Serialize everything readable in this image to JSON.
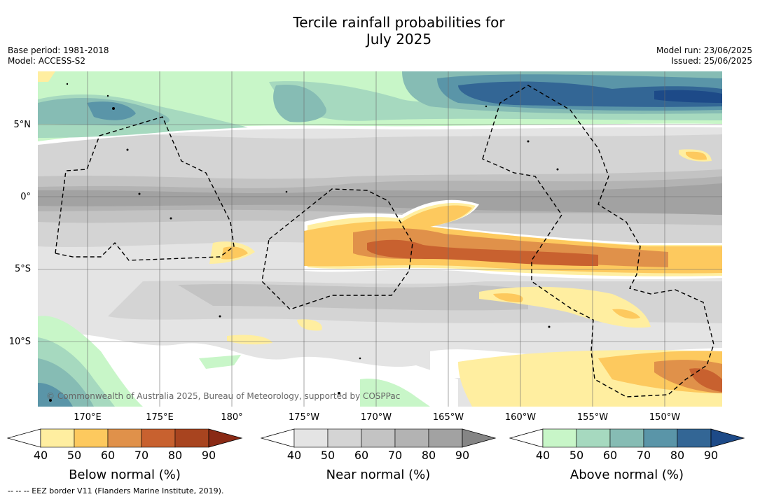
{
  "title_line1": "Tercile rainfall probabilities for",
  "title_line2": "July 2025",
  "meta_left": [
    "Base period: 1981-2018",
    "Model: ACCESS-S2"
  ],
  "meta_right": [
    "Model run: 23/06/2025",
    "Issued: 25/06/2025"
  ],
  "lat_labels": [
    "5°N",
    "0°",
    "5°S",
    "10°S"
  ],
  "lon_labels": [
    "170°E",
    "175°E",
    "180°",
    "175°W",
    "170°W",
    "165°W",
    "160°W",
    "155°W",
    "150°W"
  ],
  "copyright": "© Commonwealth of Australia 2025, Bureau of Meteorology, supported by COSPPac",
  "colorbars": [
    {
      "label": "Below normal (%)",
      "ticks": [
        "40",
        "50",
        "60",
        "70",
        "80",
        "90"
      ],
      "colors": [
        "#ffeea0",
        "#fdc95e",
        "#e0914a",
        "#c8612f",
        "#a8441f",
        "#8a2a15"
      ]
    },
    {
      "label": "Near normal (%)",
      "ticks": [
        "40",
        "50",
        "60",
        "70",
        "80",
        "90"
      ],
      "colors": [
        "#e4e4e4",
        "#d4d4d4",
        "#c3c3c3",
        "#b3b3b3",
        "#a2a2a2",
        "#858585"
      ]
    },
    {
      "label": "Above normal (%)",
      "ticks": [
        "40",
        "50",
        "60",
        "70",
        "80",
        "90"
      ],
      "colors": [
        "#c8f6c8",
        "#a6d9bf",
        "#86bcb4",
        "#5a95a8",
        "#336695",
        "#1d4a88"
      ]
    }
  ],
  "footnote": "--  --  -- EEZ border V11 (Flanders Marine Institute, 2019)."
}
